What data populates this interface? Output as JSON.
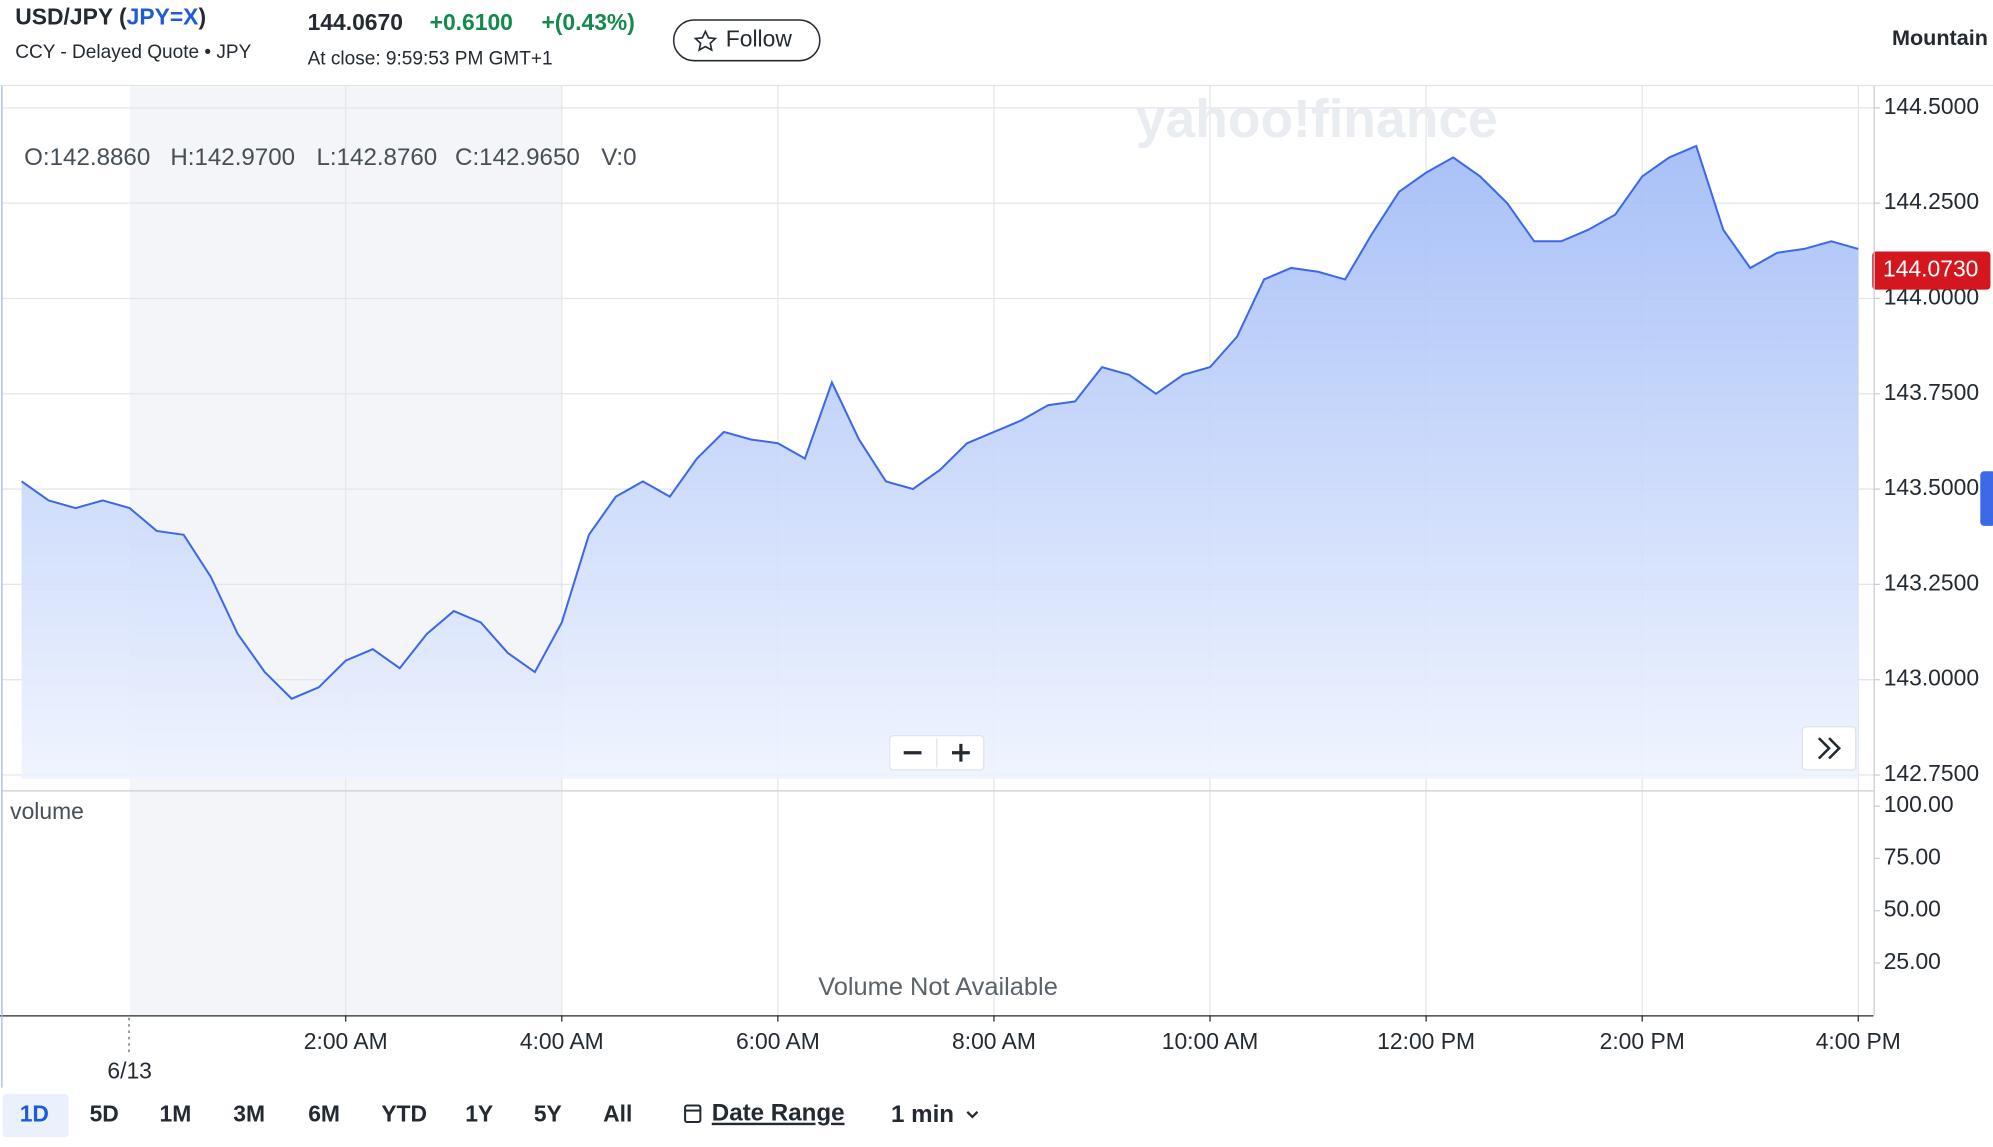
{
  "header": {
    "title_parts": [
      "USD/JPY (",
      "JPY=X",
      ")"
    ],
    "subtitle": "CCY - Delayed Quote • JPY",
    "price": "144.0670",
    "change": "+0.6100",
    "change_percent": "+(0.43%)",
    "close_time": "At close: 9:59:53 PM GMT+1",
    "follow": "Follow",
    "chart_style": "Mountain"
  },
  "chart_data": {
    "type": "area",
    "watermark": "yahoo!finance",
    "ohlc": [
      "O:142.8860",
      "H:142.9700",
      "L:142.8760",
      "C:142.9650",
      "V:0"
    ],
    "x": [
      "11:00 PM",
      "11:15 PM",
      "11:30 PM",
      "11:45 PM",
      "12:00 AM",
      "12:15 AM",
      "12:30 AM",
      "12:45 AM",
      "1:00 AM",
      "1:15 AM",
      "1:30 AM",
      "1:45 AM",
      "2:00 AM",
      "2:15 AM",
      "2:30 AM",
      "2:45 AM",
      "3:00 AM",
      "3:15 AM",
      "3:30 AM",
      "3:45 AM",
      "4:00 AM",
      "4:15 AM",
      "4:30 AM",
      "4:45 AM",
      "5:00 AM",
      "5:15 AM",
      "5:30 AM",
      "5:45 AM",
      "6:00 AM",
      "6:15 AM",
      "6:30 AM",
      "6:45 AM",
      "7:00 AM",
      "7:15 AM",
      "7:30 AM",
      "7:45 AM",
      "8:00 AM",
      "8:15 AM",
      "8:30 AM",
      "8:45 AM",
      "9:00 AM",
      "9:15 AM",
      "9:30 AM",
      "9:45 AM",
      "10:00 AM",
      "10:15 AM",
      "10:30 AM",
      "10:45 AM",
      "11:00 AM",
      "11:15 AM",
      "11:30 AM",
      "11:45 AM",
      "12:00 PM",
      "12:15 PM",
      "12:30 PM",
      "12:45 PM",
      "1:00 PM",
      "1:15 PM",
      "1:30 PM",
      "1:45 PM",
      "2:00 PM",
      "2:15 PM",
      "2:30 PM",
      "2:45 PM",
      "3:00 PM",
      "3:15 PM",
      "3:30 PM",
      "3:45 PM",
      "4:00 PM"
    ],
    "series": [
      {
        "name": "USD/JPY",
        "color": "#3d68e8",
        "values": [
          143.52,
          143.47,
          143.45,
          143.47,
          143.45,
          143.39,
          143.38,
          143.27,
          143.12,
          143.02,
          142.95,
          142.98,
          143.05,
          143.08,
          143.03,
          143.12,
          143.18,
          143.15,
          143.07,
          143.02,
          143.15,
          143.38,
          143.48,
          143.52,
          143.48,
          143.58,
          143.65,
          143.63,
          143.62,
          143.58,
          143.78,
          143.63,
          143.52,
          143.5,
          143.55,
          143.62,
          143.65,
          143.68,
          143.72,
          143.73,
          143.82,
          143.8,
          143.75,
          143.8,
          143.82,
          143.9,
          144.05,
          144.08,
          144.07,
          144.05,
          144.17,
          144.28,
          144.33,
          144.37,
          144.32,
          144.25,
          144.15,
          144.15,
          144.18,
          144.22,
          144.32,
          144.37,
          144.4,
          144.18,
          144.08,
          144.12,
          144.13,
          144.15,
          144.13
        ]
      }
    ],
    "last_price": {
      "value": 144.073,
      "label": "144.0730"
    },
    "ylim": [
      142.74,
      144.557
    ],
    "yticks": [
      {
        "value": 144.5,
        "label": "144.5000"
      },
      {
        "value": 144.25,
        "label": "144.2500"
      },
      {
        "value": 144,
        "label": "144.0000"
      },
      {
        "value": 143.75,
        "label": "143.7500"
      },
      {
        "value": 143.5,
        "label": "143.5000"
      },
      {
        "value": 143.25,
        "label": "143.2500"
      },
      {
        "value": 143,
        "label": "143.0000"
      },
      {
        "value": 142.75,
        "label": "142.7500"
      }
    ],
    "xticks": [
      "2:00 AM",
      "4:00 AM",
      "6:00 AM",
      "8:00 AM",
      "10:00 AM",
      "12:00 PM",
      "2:00 PM",
      "4:00 PM"
    ],
    "date_marker": {
      "at": "12:00 AM",
      "label": "6/13"
    },
    "grid": true,
    "volume": {
      "label": "volume",
      "note": "Volume Not Available",
      "ylim": [
        0,
        107
      ],
      "yticks": [
        {
          "value": 100,
          "label": "100.00"
        },
        {
          "value": 75,
          "label": "75.00"
        },
        {
          "value": 50,
          "label": "50.00"
        },
        {
          "value": 25,
          "label": "25.00"
        }
      ]
    }
  },
  "toolbar": {
    "ranges": [
      "1D",
      "5D",
      "1M",
      "3M",
      "6M",
      "YTD",
      "1Y",
      "5Y",
      "All"
    ],
    "date_range": "Date Range",
    "interval": "1 min"
  }
}
